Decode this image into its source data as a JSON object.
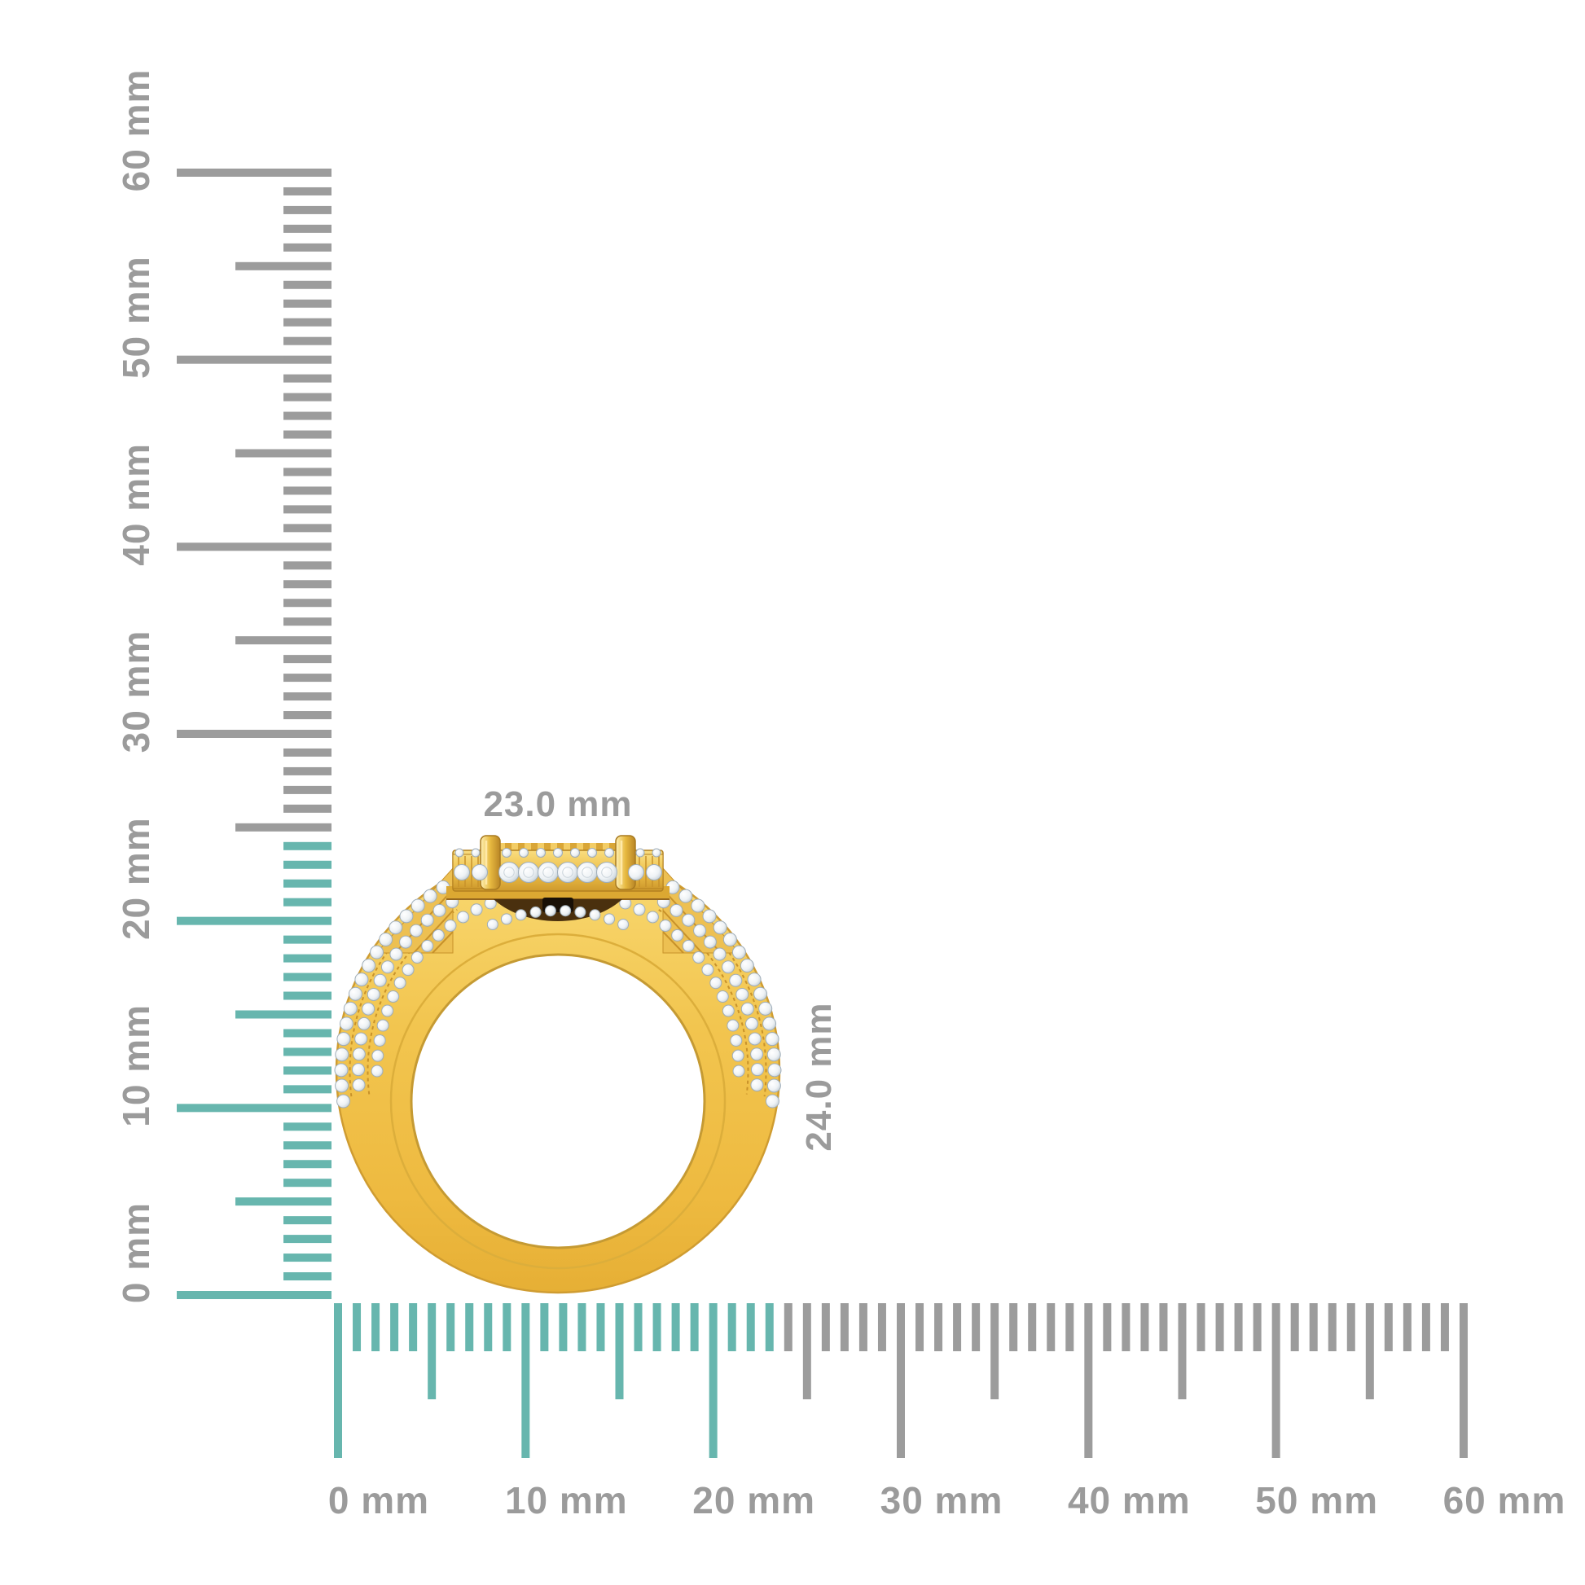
{
  "colors": {
    "background": "#ffffff",
    "teal_highlight": "#67b6ae",
    "tick_gray": "#9c9c9c",
    "label_gray": "#9b9b9b",
    "gold": "#f1c24f",
    "gold_light": "#f9dd80",
    "gold_mid": "#edbf47",
    "gold_dark": "#c8922a",
    "gold_deep": "#96671e",
    "band_stroke": "#cf9c31",
    "cavity_brown": "#4a300e",
    "slot_black": "#191006",
    "diamond_white": "#ffffff",
    "diamond_edge": "#9fadb8"
  },
  "rulers": {
    "vertical": {
      "unit": "mm",
      "min_mm": 0,
      "max_mm": 60,
      "tick_step_mm": 1,
      "half_tick_step_mm": 5,
      "major_tick_step_mm": 10,
      "labels": [
        "0 mm",
        "10 mm",
        "20 mm",
        "30 mm",
        "40 mm",
        "50 mm",
        "60 mm"
      ],
      "highlight_from_mm": 0,
      "highlight_to_mm": 24
    },
    "horizontal": {
      "unit": "mm",
      "min_mm": 0,
      "max_mm": 60,
      "tick_step_mm": 1,
      "half_tick_step_mm": 5,
      "major_tick_step_mm": 10,
      "labels": [
        "0 mm",
        "10 mm",
        "20 mm",
        "30 mm",
        "40 mm",
        "50 mm",
        "60 mm"
      ],
      "highlight_from_mm": 0,
      "highlight_to_mm": 23
    }
  },
  "ring": {
    "width_label": "23.0 mm",
    "height_label": "24.0 mm"
  }
}
